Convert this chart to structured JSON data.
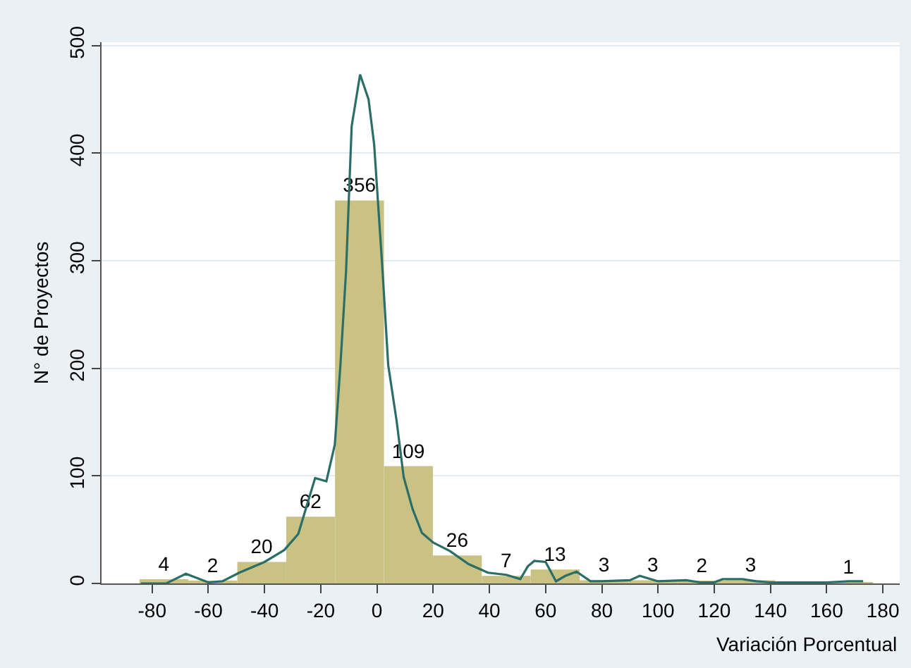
{
  "chart_data": {
    "type": "histogram",
    "xlabel": "Variación Porcentual",
    "ylabel": "N° de Proyectos",
    "xlim": [
      -98,
      186
    ],
    "ylim": [
      0,
      503
    ],
    "xticks": [
      -80,
      -60,
      -40,
      -20,
      0,
      20,
      40,
      60,
      80,
      100,
      120,
      140,
      160,
      180
    ],
    "yticks": [
      0,
      100,
      200,
      300,
      400,
      500
    ],
    "grid": "y",
    "series": [
      {
        "color": "#c9c283",
        "bins": [
          -84.5,
          -67.1,
          -49.7,
          -32.3,
          -14.9,
          2.5,
          19.9,
          37.3,
          54.7,
          72.1,
          89.5,
          106.9,
          124.3,
          141.7,
          159.1,
          176.5
        ],
        "values": [
          4,
          2,
          20,
          62,
          356,
          109,
          26,
          7,
          13,
          3,
          3,
          2,
          3,
          0,
          1
        ],
        "value_labels": [
          "4",
          "2",
          "20",
          "62",
          "356",
          "109",
          "26",
          "7",
          "13",
          "3",
          "3",
          "2",
          "3",
          null,
          "1"
        ]
      },
      {
        "type": "line",
        "color": "#2b6e68",
        "x": [
          -84,
          -75,
          -68,
          -60,
          -55,
          -49,
          -40,
          -33,
          -28,
          -25,
          -22,
          -18,
          -15,
          -13,
          -11,
          -9,
          -6,
          -3,
          -1,
          2,
          4,
          7,
          9.5,
          12.7,
          16,
          20,
          26,
          32.6,
          39.5,
          46,
          51,
          53.7,
          56,
          60,
          63.7,
          67,
          71,
          76,
          80,
          90,
          93.5,
          100,
          110,
          115,
          120,
          123,
          130,
          135,
          140,
          160,
          168,
          173
        ],
        "values": [
          0,
          0,
          9,
          1,
          2,
          10,
          20,
          31,
          46,
          72,
          98,
          95,
          129,
          203,
          290,
          425,
          473,
          450,
          408,
          290,
          203,
          151,
          99,
          69,
          47,
          38,
          30,
          18,
          10,
          8,
          4,
          16,
          21,
          20,
          2,
          7,
          11,
          2,
          2,
          3,
          7,
          2,
          3,
          1,
          1,
          4,
          4,
          2,
          1,
          1,
          2,
          2
        ]
      }
    ]
  }
}
